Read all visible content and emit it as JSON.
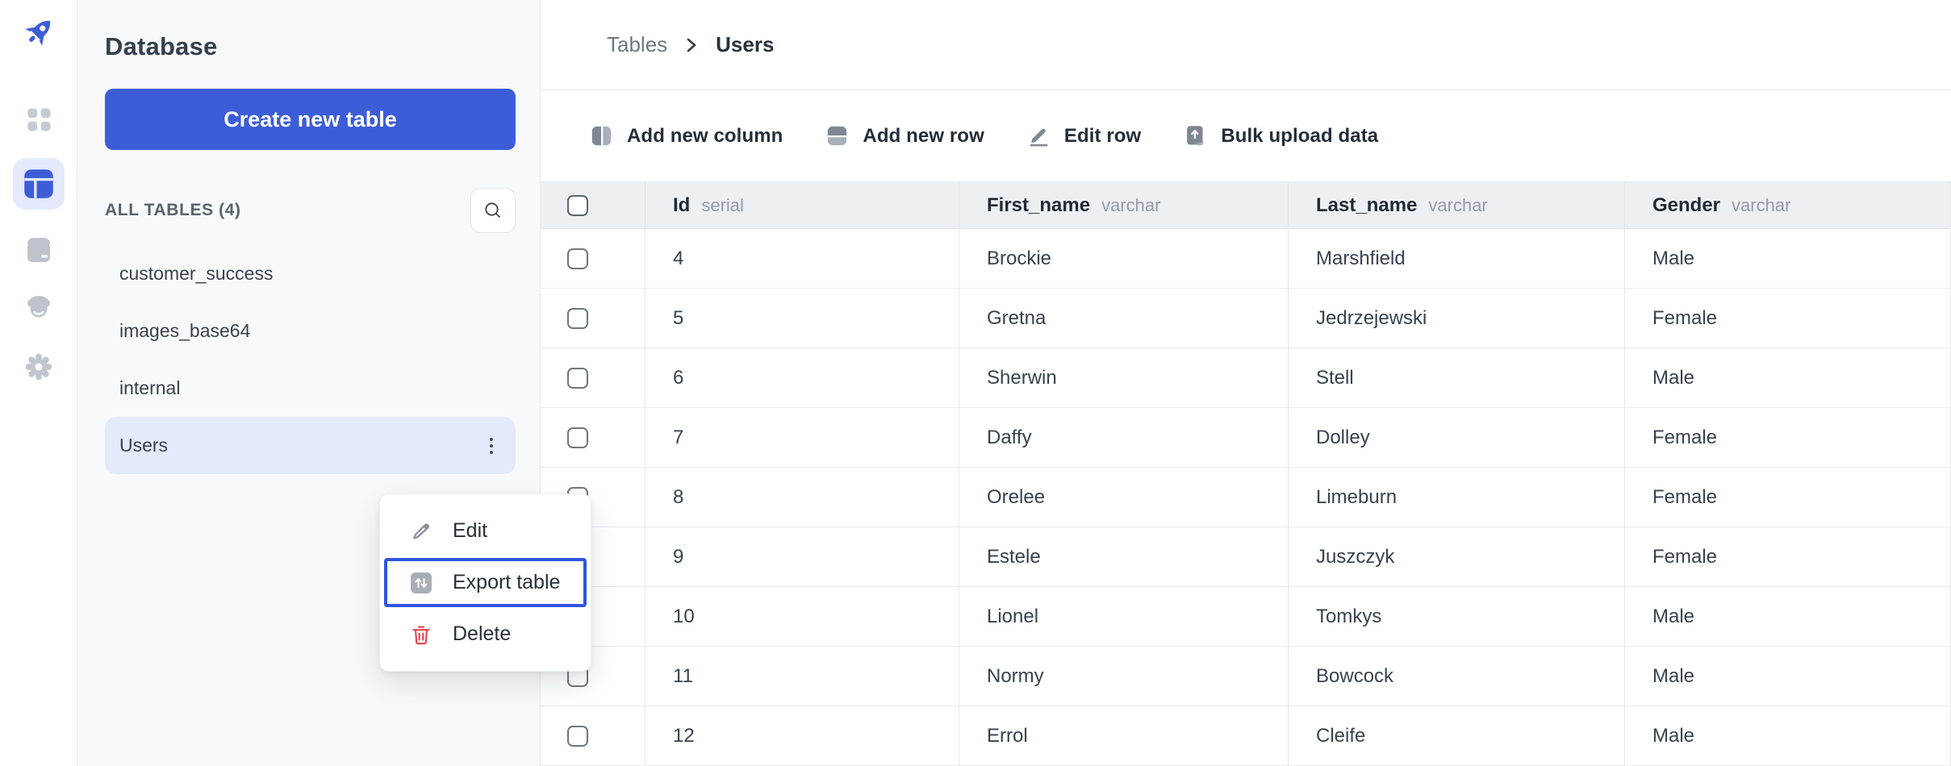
{
  "colors": {
    "accent": "#3d5dd8",
    "accent_light": "#e4e9fc",
    "focus_ring": "#3154e2",
    "danger": "#e5484d",
    "header_bg": "#edeff3",
    "sidebar_bg": "#f8f9fa",
    "gray_icon": "#7e8793",
    "gray_icon_light": "#aab0b9"
  },
  "rail": {
    "icons": [
      {
        "name": "rocket-logo",
        "active": false
      },
      {
        "name": "apps-grid",
        "active": false
      },
      {
        "name": "tables",
        "active": true
      },
      {
        "name": "storage",
        "active": false
      },
      {
        "name": "customers",
        "active": false
      },
      {
        "name": "settings-gear",
        "active": false
      }
    ]
  },
  "sidebar": {
    "title": "Database",
    "create_button": "Create new table",
    "section_label": "ALL TABLES (4)",
    "search_icon": "search-icon",
    "tables": [
      {
        "name": "customer_success",
        "active": false
      },
      {
        "name": "images_base64",
        "active": false
      },
      {
        "name": "internal",
        "active": false
      },
      {
        "name": "Users",
        "active": true,
        "menu_icon": "kebab-menu"
      }
    ]
  },
  "breadcrumb": {
    "parent": "Tables",
    "current": "Users"
  },
  "toolbar": {
    "buttons": [
      {
        "label": "Add new column",
        "icon": "columns-icon"
      },
      {
        "label": "Add new row",
        "icon": "rows-icon"
      },
      {
        "label": "Edit row",
        "icon": "pencil-icon"
      },
      {
        "label": "Bulk upload data",
        "icon": "upload-icon"
      }
    ]
  },
  "context_menu": {
    "items": [
      {
        "label": "Edit",
        "icon": "pencil-outline-icon",
        "focused": false,
        "danger": false
      },
      {
        "label": "Export table",
        "icon": "export-arrows-icon",
        "focused": true,
        "danger": false
      },
      {
        "label": "Delete",
        "icon": "trash-icon",
        "focused": false,
        "danger": true
      }
    ]
  },
  "table": {
    "columns": [
      {
        "name": "Id",
        "type": "serial"
      },
      {
        "name": "First_name",
        "type": "varchar"
      },
      {
        "name": "Last_name",
        "type": "varchar"
      },
      {
        "name": "Gender",
        "type": "varchar"
      }
    ],
    "rows": [
      {
        "id": "4",
        "first_name": "Brockie",
        "last_name": "Marshfield",
        "gender": "Male"
      },
      {
        "id": "5",
        "first_name": "Gretna",
        "last_name": "Jedrzejewski",
        "gender": "Female"
      },
      {
        "id": "6",
        "first_name": "Sherwin",
        "last_name": "Stell",
        "gender": "Male"
      },
      {
        "id": "7",
        "first_name": "Daffy",
        "last_name": "Dolley",
        "gender": "Female"
      },
      {
        "id": "8",
        "first_name": "Orelee",
        "last_name": "Limeburn",
        "gender": "Female"
      },
      {
        "id": "9",
        "first_name": "Estele",
        "last_name": "Juszczyk",
        "gender": "Female"
      },
      {
        "id": "10",
        "first_name": "Lionel",
        "last_name": "Tomkys",
        "gender": "Male"
      },
      {
        "id": "11",
        "first_name": "Normy",
        "last_name": "Bowcock",
        "gender": "Male"
      },
      {
        "id": "12",
        "first_name": "Errol",
        "last_name": "Cleife",
        "gender": "Male"
      }
    ]
  }
}
